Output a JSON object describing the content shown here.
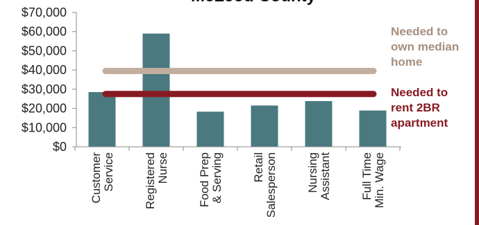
{
  "chart_data": {
    "type": "bar",
    "title": "McLeod County",
    "categories": [
      [
        "Customer",
        "Service"
      ],
      [
        "Registered",
        "Nurse"
      ],
      [
        "Food Prep",
        "& Serving"
      ],
      [
        "Retail",
        "Salesperson"
      ],
      [
        "Nursing",
        "Assistant"
      ],
      [
        "Full Time",
        "Min. Wage"
      ]
    ],
    "values": [
      28500,
      59000,
      18300,
      21500,
      23800,
      18900
    ],
    "ylim": [
      0,
      70000
    ],
    "yticks": [
      0,
      10000,
      20000,
      30000,
      40000,
      50000,
      60000,
      70000
    ],
    "ytick_labels": [
      "$0",
      "$10,000",
      "$20,000",
      "$30,000",
      "$40,000",
      "$50,000",
      "$60,000",
      "$70,000"
    ],
    "xlabel": "",
    "ylabel": "",
    "grid": false,
    "reference_lines": [
      {
        "label": [
          "Needed to",
          "own median",
          "home"
        ],
        "value": 39500,
        "color": "#c2ae9f"
      },
      {
        "label": [
          "Needed to",
          "rent 2BR",
          "apartment"
        ],
        "value": 27500,
        "color": "#871a22"
      }
    ],
    "colors": {
      "bar": "#4a7a80",
      "axis": "#888888",
      "label_own": "#a68f7e",
      "label_rent": "#871a22",
      "border": "#871a22"
    }
  }
}
